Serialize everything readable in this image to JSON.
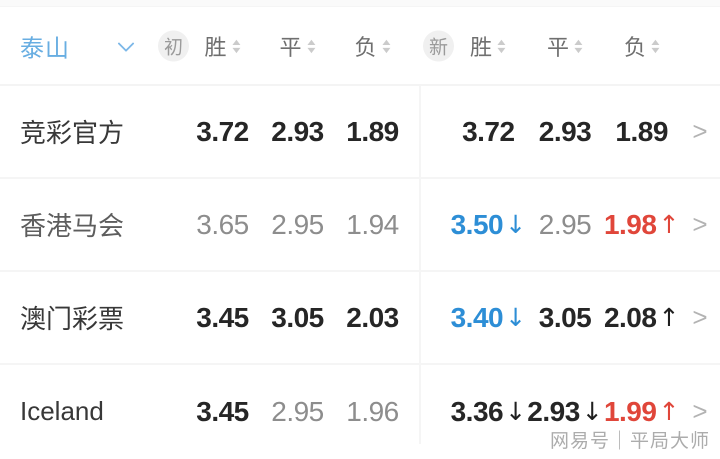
{
  "colors": {
    "team_blue": "#68aee2",
    "odds_blue": "#2d8ed6",
    "odds_red": "#e0463a",
    "odds_dark": "#262626",
    "odds_gray": "#8d8d8d",
    "header_gray": "#6f6f6f",
    "divider_gray": "#f5f5f5",
    "badge_bg": "#f0f0f0"
  },
  "icons": {
    "row_chevron": ">",
    "sort_up": "▲",
    "sort_down": "▼"
  },
  "header": {
    "team": "泰山",
    "early_badge": "初",
    "new_badge": "新",
    "early_columns": [
      "胜",
      "平",
      "负"
    ],
    "new_columns": [
      "胜",
      "平",
      "负"
    ]
  },
  "rows": [
    {
      "name": "竞彩官方",
      "early": [
        {
          "value": "3.72"
        },
        {
          "value": "2.93"
        },
        {
          "value": "1.89"
        }
      ],
      "new": [
        {
          "value": "3.72",
          "arrow": ""
        },
        {
          "value": "2.93",
          "arrow": ""
        },
        {
          "value": "1.89",
          "arrow": ""
        }
      ]
    },
    {
      "name": "香港马会",
      "early": [
        {
          "value": "3.65"
        },
        {
          "value": "2.95"
        },
        {
          "value": "1.94"
        }
      ],
      "new": [
        {
          "value": "3.50",
          "arrow": "↓"
        },
        {
          "value": "2.95",
          "arrow": ""
        },
        {
          "value": "1.98",
          "arrow": "↑"
        }
      ]
    },
    {
      "name": "澳门彩票",
      "early": [
        {
          "value": "3.45"
        },
        {
          "value": "3.05"
        },
        {
          "value": "2.03"
        }
      ],
      "new": [
        {
          "value": "3.40",
          "arrow": "↓"
        },
        {
          "value": "3.05",
          "arrow": ""
        },
        {
          "value": "2.08",
          "arrow": "↑"
        }
      ]
    },
    {
      "name": "Iceland",
      "early": [
        {
          "value": "3.45"
        },
        {
          "value": "2.95"
        },
        {
          "value": "1.96"
        }
      ],
      "new": [
        {
          "value": "3.36",
          "arrow": "↓"
        },
        {
          "value": "2.93",
          "arrow": "↓"
        },
        {
          "value": "1.99",
          "arrow": "↑"
        }
      ]
    }
  ],
  "watermark": "网易号｜平局大师"
}
